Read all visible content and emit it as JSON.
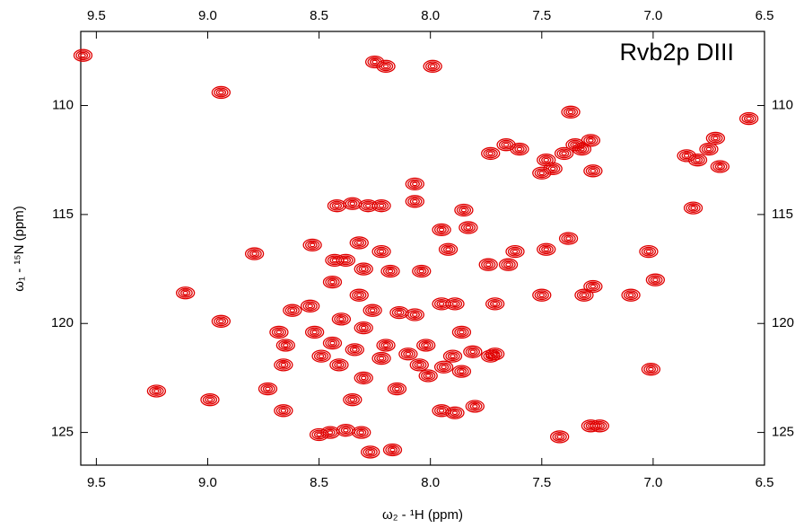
{
  "chart_data": {
    "type": "scatter",
    "title": "Rvb2p DIII",
    "x_label": "ω₂ - ¹H  (ppm)",
    "y_label": "ω₁ - ¹⁵N  (ppm)",
    "color": "#e00000",
    "xlim": [
      9.57,
      6.5
    ],
    "ylim": [
      126.5,
      106.6
    ],
    "xticks": [
      9.5,
      {
        "value": 9,
        "label": "9.0"
      },
      8.5,
      {
        "value": 8,
        "label": "8.0"
      },
      7.5,
      {
        "value": 7,
        "label": "7.0"
      },
      6.5
    ],
    "yticks": [
      110,
      115,
      120,
      125
    ],
    "x": [
      9.56,
      8.94,
      8.25,
      8.2,
      7.99,
      7.48,
      7.45,
      7.4,
      7.35,
      7.32,
      7.28,
      7.37,
      7.5,
      7.27,
      7.6,
      7.66,
      7.73,
      6.57,
      6.72,
      6.75,
      6.8,
      6.85,
      6.7,
      6.82,
      8.07,
      8.07,
      8.42,
      8.35,
      8.28,
      8.22,
      7.95,
      7.85,
      7.83,
      8.53,
      8.79,
      8.32,
      8.22,
      8.18,
      8.3,
      8.38,
      8.43,
      8.04,
      7.92,
      7.74,
      7.65,
      7.62,
      7.48,
      7.38,
      7.02,
      6.99,
      7.27,
      7.31,
      7.1,
      7.5,
      7.71,
      7.89,
      7.95,
      9.1,
      8.94,
      8.44,
      8.32,
      8.26,
      8.62,
      8.54,
      8.4,
      8.3,
      8.14,
      8.07,
      8.68,
      8.65,
      8.52,
      8.44,
      8.34,
      8.2,
      8.1,
      8.02,
      7.9,
      7.81,
      7.73,
      7.86,
      8.22,
      8.3,
      8.49,
      8.41,
      8.05,
      7.94,
      7.86,
      7.71,
      8.66,
      9.23,
      8.73,
      8.66,
      8.35,
      8.15,
      8.01,
      7.8,
      7.95,
      7.89,
      8.5,
      8.45,
      8.38,
      8.31,
      8.27,
      8.17,
      7.42,
      7.28,
      7.24,
      7.01,
      8.99
    ],
    "values": [
      107.7,
      109.4,
      108.0,
      108.2,
      108.2,
      112.5,
      112.9,
      112.2,
      111.8,
      112.0,
      111.6,
      110.3,
      113.1,
      113.0,
      112.0,
      111.8,
      112.2,
      110.6,
      111.5,
      112.0,
      112.5,
      112.3,
      112.8,
      114.7,
      113.6,
      114.4,
      114.6,
      114.5,
      114.6,
      114.6,
      115.7,
      114.8,
      115.6,
      116.4,
      116.8,
      116.3,
      116.7,
      117.6,
      117.5,
      117.1,
      117.1,
      117.6,
      116.6,
      117.3,
      117.3,
      116.7,
      116.6,
      116.1,
      116.7,
      118.0,
      118.3,
      118.7,
      118.7,
      118.7,
      119.1,
      119.1,
      119.1,
      118.6,
      119.9,
      118.1,
      118.7,
      119.4,
      119.4,
      119.2,
      119.8,
      120.2,
      119.5,
      119.6,
      120.4,
      121.0,
      120.4,
      120.9,
      121.2,
      121.0,
      121.4,
      121.0,
      121.5,
      121.3,
      121.5,
      120.4,
      121.6,
      122.5,
      121.5,
      121.9,
      121.9,
      122.0,
      122.2,
      121.4,
      121.9,
      123.1,
      123.0,
      124.0,
      123.5,
      123.0,
      122.4,
      123.8,
      124.0,
      124.1,
      125.1,
      125.0,
      124.9,
      125.0,
      125.9,
      125.8,
      125.2,
      124.7,
      124.7,
      122.1,
      123.5
    ]
  }
}
